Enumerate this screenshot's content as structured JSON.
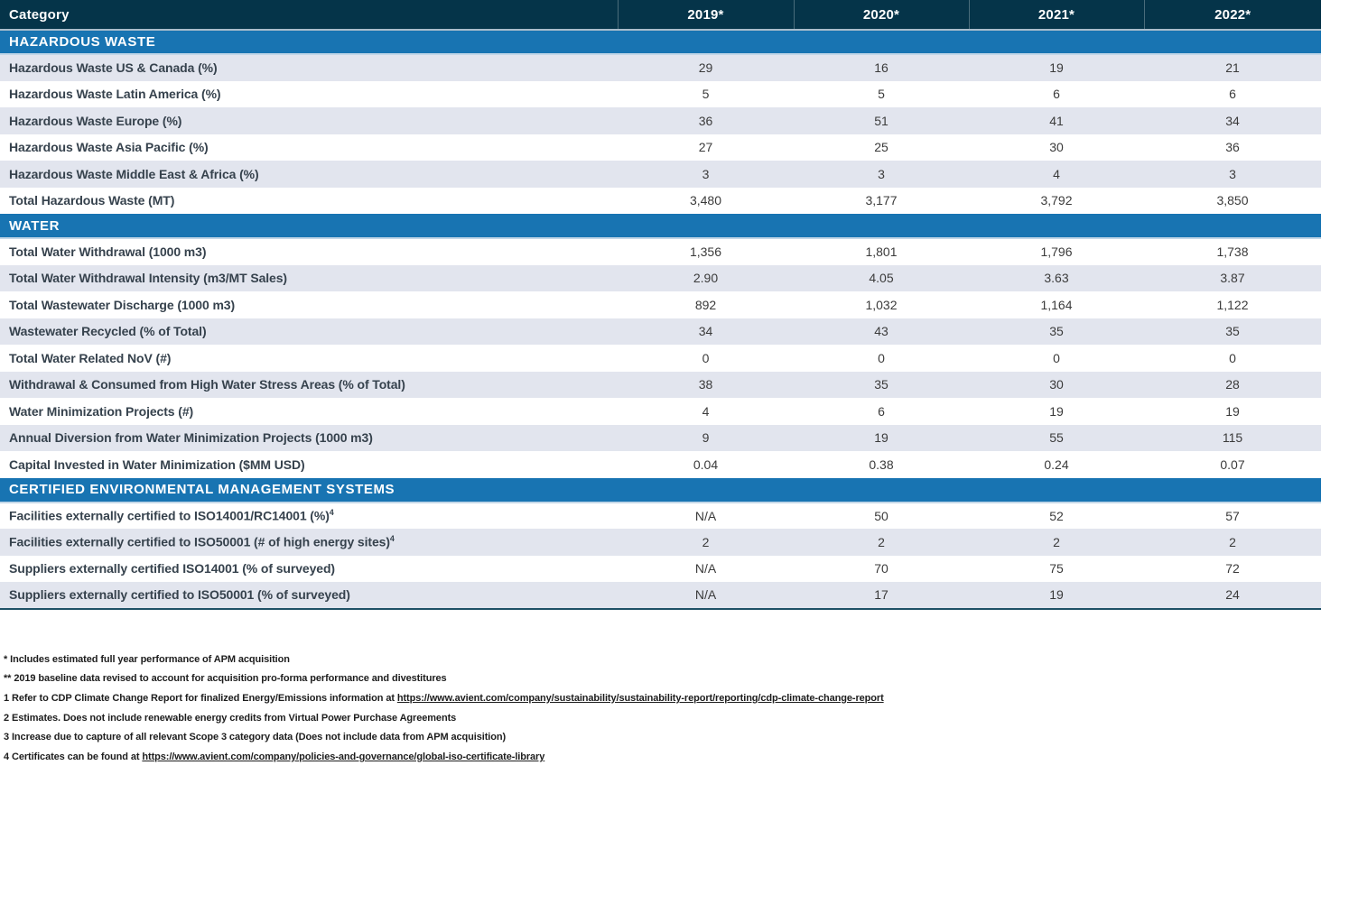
{
  "colors": {
    "header_bg": "#053449",
    "header_underline": "#a9bccb",
    "section_bg": "#1874b2",
    "section_underline": "#c3d7e8",
    "stripe_bg": "#e2e5ee",
    "label_color": "#36424d",
    "value_color": "#3b3b3b",
    "table_bottom_border": "#1d5065",
    "footnote_color": "#1d1d1d"
  },
  "table": {
    "header": {
      "category": "Category",
      "years": [
        "2019*",
        "2020*",
        "2021*",
        "2022*"
      ]
    },
    "sections": [
      {
        "title": "HAZARDOUS WASTE",
        "rows": [
          {
            "label": "Hazardous Waste US & Canada (%)",
            "values": [
              "29",
              "16",
              "19",
              "21"
            ]
          },
          {
            "label": "Hazardous Waste Latin America (%)",
            "values": [
              "5",
              "5",
              "6",
              "6"
            ]
          },
          {
            "label": "Hazardous Waste Europe (%)",
            "values": [
              "36",
              "51",
              "41",
              "34"
            ]
          },
          {
            "label": "Hazardous Waste Asia Pacific (%)",
            "values": [
              "27",
              "25",
              "30",
              "36"
            ]
          },
          {
            "label": "Hazardous Waste Middle East & Africa (%)",
            "values": [
              "3",
              "3",
              "4",
              "3"
            ]
          },
          {
            "label": "Total Hazardous Waste (MT)",
            "values": [
              "3,480",
              "3,177",
              "3,792",
              "3,850"
            ]
          }
        ]
      },
      {
        "title": "WATER",
        "rows": [
          {
            "label": "Total Water Withdrawal (1000 m3)",
            "values": [
              "1,356",
              "1,801",
              "1,796",
              "1,738"
            ]
          },
          {
            "label": "Total Water Withdrawal Intensity (m3/MT Sales)",
            "values": [
              "2.90",
              "4.05",
              "3.63",
              "3.87"
            ]
          },
          {
            "label": "Total Wastewater Discharge (1000 m3)",
            "values": [
              "892",
              "1,032",
              "1,164",
              "1,122"
            ]
          },
          {
            "label": "Wastewater Recycled (% of Total)",
            "values": [
              "34",
              "43",
              "35",
              "35"
            ]
          },
          {
            "label": "Total Water Related NoV (#)",
            "values": [
              "0",
              "0",
              "0",
              "0"
            ]
          },
          {
            "label": "Withdrawal & Consumed from High Water Stress Areas (% of Total)",
            "values": [
              "38",
              "35",
              "30",
              "28"
            ]
          },
          {
            "label": "Water Minimization Projects (#)",
            "values": [
              "4",
              "6",
              "19",
              "19"
            ]
          },
          {
            "label": "Annual Diversion from Water Minimization Projects (1000 m3)",
            "values": [
              "9",
              "19",
              "55",
              "115"
            ]
          },
          {
            "label": "Capital Invested in Water Minimization ($MM USD)",
            "values": [
              "0.04",
              "0.38",
              "0.24",
              "0.07"
            ]
          }
        ]
      },
      {
        "title": "CERTIFIED ENVIRONMENTAL MANAGEMENT SYSTEMS",
        "rows": [
          {
            "label": "Facilities externally certified to ISO14001/RC14001 (%)",
            "sup": "4",
            "values": [
              "N/A",
              "50",
              "52",
              "57"
            ]
          },
          {
            "label": "Facilities externally certified to ISO50001 (# of high energy sites)",
            "sup": "4",
            "values": [
              "2",
              "2",
              "2",
              "2"
            ]
          },
          {
            "label": "Suppliers externally certified ISO14001 (% of surveyed)",
            "values": [
              "N/A",
              "70",
              "75",
              "72"
            ]
          },
          {
            "label": "Suppliers externally certified to ISO50001 (% of surveyed)",
            "values": [
              "N/A",
              "17",
              "19",
              "24"
            ]
          }
        ]
      }
    ]
  },
  "footnotes": [
    {
      "parts": [
        {
          "text": "* Includes estimated full year performance of APM acquisition",
          "link": false
        }
      ]
    },
    {
      "parts": [
        {
          "text": "** 2019 baseline data revised to account for acquisition pro-forma performance and divestitures",
          "link": false
        }
      ]
    },
    {
      "parts": [
        {
          "text": "1 Refer to CDP Climate Change Report for finalized Energy/Emissions information at ",
          "link": false
        },
        {
          "text": "https://www.avient.com/company/sustainability/sustainability-report/reporting/cdp-climate-change-report",
          "link": true
        }
      ]
    },
    {
      "parts": [
        {
          "text": "2 Estimates. Does not include renewable energy credits from Virtual Power Purchase Agreements",
          "link": false
        }
      ]
    },
    {
      "parts": [
        {
          "text": "3 Increase due to capture of all relevant Scope 3 category data (Does not include data from APM acquisition)",
          "link": false
        }
      ]
    },
    {
      "parts": [
        {
          "text": "4 Certificates can be found at ",
          "link": false
        },
        {
          "text": "https://www.avient.com/company/policies-and-governance/global-iso-certificate-library",
          "link": true
        }
      ]
    }
  ]
}
